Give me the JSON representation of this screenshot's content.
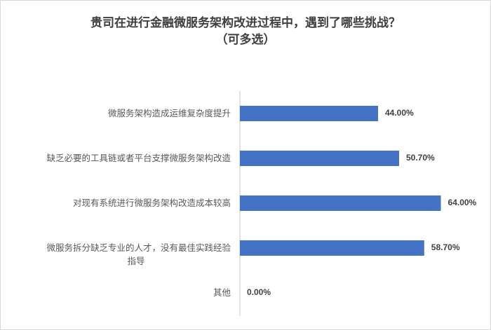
{
  "chart_data": {
    "type": "bar",
    "orientation": "horizontal",
    "title": "贵司在进行金融微服务架构改进过程中，遇到了哪些挑战？",
    "subtitle": "（可多选）",
    "categories": [
      "微服务架构造成运维复杂度提升",
      "缺乏必要的工具链或者平台支撑微服务架构改造",
      "对现有系统进行微服务架构改造成本较高",
      "微服务拆分缺乏专业的人才，没有最佳实践经验指导",
      "其他"
    ],
    "category_lines": [
      [
        "微服务架构造成运维复杂度提升"
      ],
      [
        "缺乏必要的工具链或者平台支撑微服务架构改造"
      ],
      [
        "对现有系统进行微服务架构改造成本较高"
      ],
      [
        "微服务拆分缺乏专业的人才，没有最佳实践经验",
        "指导"
      ],
      [
        "其他"
      ]
    ],
    "values": [
      44.0,
      50.7,
      64.0,
      58.7,
      0.0
    ],
    "data_labels": [
      "44.00%",
      "50.70%",
      "64.00%",
      "58.70%",
      "0.00%"
    ],
    "unit": "%",
    "xlim": [
      0,
      100
    ],
    "grid": false,
    "legend": "none",
    "bar_color": "#4472C4"
  }
}
